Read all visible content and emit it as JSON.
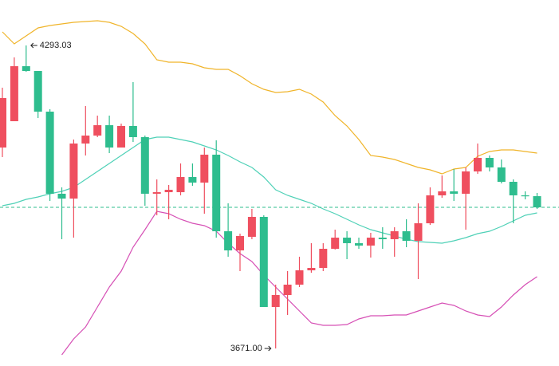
{
  "chart_data": {
    "type": "candlestick",
    "ylim": [
      3635,
      4386.3
    ],
    "up_color": "#ef4f5f",
    "down_color": "#2ebd8e",
    "open": [
      4083.5,
      4137.5,
      4250.4,
      4240.6,
      4157.1,
      3988.6,
      3978.7,
      4091.7,
      4108.0,
      4129.3,
      4083.5,
      4127.7,
      4104.8,
      3988.6,
      3991.8,
      3991.8,
      4022.9,
      4011.5,
      4068.8,
      3911.6,
      3872.3,
      3900.2,
      3941.1,
      3756.1,
      3780.7,
      3802.0,
      3831.4,
      3836.3,
      3875.6,
      3898.5,
      3887.1,
      3882.2,
      3898.5,
      3895.3,
      3911.6,
      3892.0,
      3928.0,
      3985.3,
      3993.5,
      3988.6,
      4034.4,
      4062.2,
      4042.6,
      4013.1,
      3985.3,
      3983.6
    ],
    "high": [
      4206.3,
      4268.5,
      4293.03,
      4240.6,
      4162.1,
      4001.7,
      4099.9,
      4168.6,
      4149.0,
      4149.0,
      4132.6,
      4217.7,
      4108.0,
      4018.0,
      4006.6,
      4050.8,
      4050.8,
      4083.5,
      4098.2,
      3968.9,
      3906.7,
      3957.5,
      3944.4,
      3802.0,
      3829.8,
      3859.3,
      3887.1,
      3887.1,
      3914.9,
      3911.6,
      3898.5,
      3908.4,
      3919.8,
      3919.8,
      3936.2,
      3968.9,
      4001.7,
      4026.2,
      4039.3,
      4042.6,
      4091.7,
      4067.1,
      4058.9,
      4018.0,
      3993.5,
      3990.2
    ],
    "low": [
      4063.9,
      4137.5,
      4239.0,
      4144.1,
      3973.8,
      3895.3,
      3898.5,
      4067.1,
      4104.8,
      4072.0,
      4083.5,
      4094.9,
      3964.0,
      3944.4,
      3936.2,
      3985.3,
      4004.9,
      3947.6,
      3898.5,
      3859.3,
      3829.8,
      3895.3,
      3756.1,
      3671.0,
      3739.8,
      3797.1,
      3826.5,
      3829.8,
      3874.0,
      3854.3,
      3875.6,
      3857.6,
      3875.6,
      3859.3,
      3878.9,
      3813.4,
      3924.7,
      3980.4,
      3973.8,
      3914.9,
      4029.5,
      4034.4,
      4009.8,
      3928.0,
      3977.1,
      3957.5
    ],
    "close": [
      4185.0,
      4250.4,
      4240.6,
      4157.1,
      3988.6,
      3978.7,
      4091.7,
      4108.0,
      4129.3,
      4083.5,
      4127.7,
      4104.8,
      3988.6,
      3991.8,
      3996.7,
      4022.9,
      4011.5,
      4068.8,
      3911.6,
      3872.3,
      3901.8,
      3941.1,
      3756.1,
      3780.7,
      3802.0,
      3831.4,
      3836.3,
      3875.6,
      3898.5,
      3887.1,
      3882.2,
      3898.5,
      3895.3,
      3911.6,
      3892.0,
      3928.0,
      3985.3,
      3993.5,
      3988.6,
      4034.4,
      4062.2,
      4042.6,
      4013.1,
      3985.3,
      3983.6,
      3960.7
    ],
    "bands": [
      {
        "color": "#f0b429",
        "values": [
          4320.8,
          4296.3,
          4312.6,
          4329.0,
          4333.9,
          4337.2,
          4340.5,
          4342.1,
          4343.7,
          4340.5,
          4332.3,
          4317.6,
          4296.3,
          4263.5,
          4258.6,
          4258.6,
          4255.4,
          4247.2,
          4243.9,
          4243.9,
          4230.8,
          4214.4,
          4203.0,
          4196.4,
          4198.1,
          4203.0,
          4193.2,
          4176.8,
          4149.0,
          4127.7,
          4099.9,
          4067.1,
          4063.9,
          4058.9,
          4050.8,
          4042.6,
          4037.7,
          4029.5,
          4039.3,
          4042.6,
          4065.5,
          4075.3,
          4078.6,
          4078.6,
          4075.3,
          4072.0
        ]
      },
      {
        "color": "#4fd1b7",
        "values": [
          3964.0,
          3968.9,
          3977.1,
          3982.0,
          3988.6,
          3993.5,
          4001.7,
          4018.0,
          4034.4,
          4050.8,
          4067.1,
          4083.5,
          4099.9,
          4104.8,
          4104.8,
          4099.9,
          4094.9,
          4086.8,
          4078.6,
          4067.1,
          4054.0,
          4042.6,
          4022.9,
          3996.7,
          3985.3,
          3977.1,
          3968.9,
          3957.5,
          3947.6,
          3936.2,
          3924.7,
          3914.9,
          3908.4,
          3901.8,
          3895.3,
          3890.3,
          3888.7,
          3887.1,
          3892.0,
          3898.5,
          3906.7,
          3911.6,
          3921.4,
          3932.9,
          3944.4,
          3949.3
        ]
      },
      {
        "color": "#d64fb5",
        "values": [
          null,
          null,
          null,
          null,
          null,
          3657.9,
          3690.7,
          3715.2,
          3756.1,
          3797.1,
          3829.8,
          3878.9,
          3914.9,
          3952.5,
          3947.6,
          3936.2,
          3928.0,
          3923.1,
          3911.6,
          3887.1,
          3865.8,
          3849.4,
          3821.6,
          3797.1,
          3772.5,
          3747.9,
          3723.4,
          3718.5,
          3718.5,
          3720.1,
          3731.6,
          3738.1,
          3738.1,
          3739.8,
          3739.8,
          3747.9,
          3756.1,
          3764.3,
          3759.4,
          3747.9,
          3739.8,
          3736.5,
          3756.1,
          3780.7,
          3802.0,
          3818.3
        ]
      }
    ],
    "max_label": "4293.03",
    "min_label": "3671.00"
  }
}
